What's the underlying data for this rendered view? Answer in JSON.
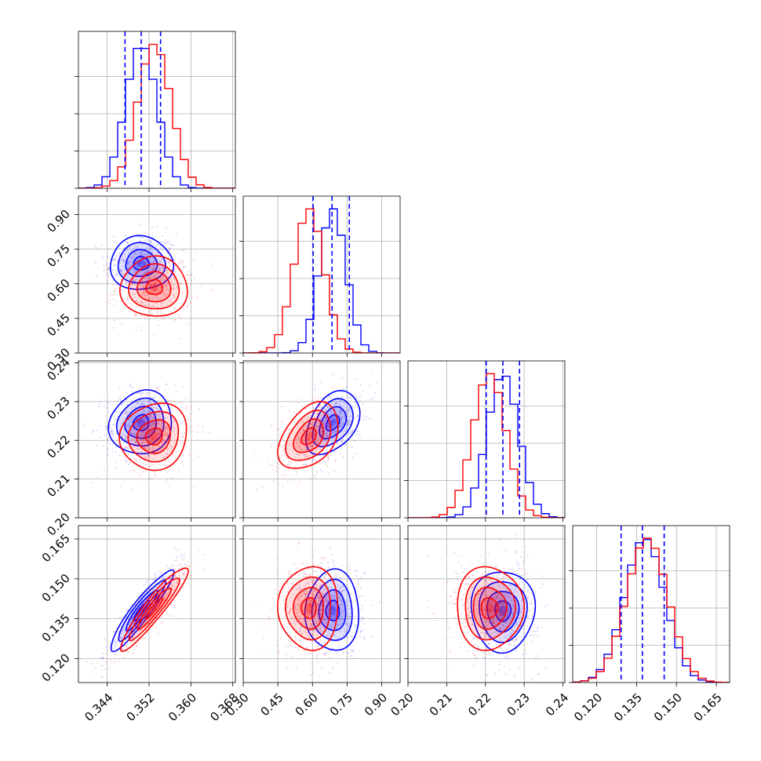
{
  "chart_data": {
    "type": "corner",
    "title": "",
    "grid": true,
    "colors": {
      "series_a": "#0000ff",
      "series_b": "#ff0000"
    },
    "series": [
      {
        "color": "#0000ff",
        "means": [
          0.3505,
          0.688,
          0.2245,
          0.138
        ],
        "stds": [
          0.003,
          0.058,
          0.0041,
          0.0076
        ]
      },
      {
        "color": "#ff0000",
        "means": [
          0.353,
          0.585,
          0.221,
          0.139
        ],
        "stds": [
          0.0032,
          0.065,
          0.0043,
          0.0078
        ]
      }
    ],
    "correlations": [
      [
        1.0,
        0.0,
        0.1,
        0.93
      ],
      [
        0.0,
        1.0,
        0.4,
        0.0
      ],
      [
        0.1,
        0.4,
        1.0,
        0.0
      ],
      [
        0.93,
        0.0,
        0.0,
        1.0
      ]
    ],
    "quantiles": [
      [
        0.3474,
        0.3505,
        0.3542
      ],
      [
        0.603,
        0.685,
        0.76
      ],
      [
        0.2202,
        0.2245,
        0.2288
      ],
      [
        0.1292,
        0.1372,
        0.1454
      ]
    ],
    "contour_levels_sigma": [
      0.5,
      1.0,
      1.5,
      2.0
    ],
    "parameters": [
      {
        "range": [
          0.3385,
          0.3685
        ],
        "ticks": [
          "0.344",
          "0.352",
          "0.360",
          "0.368"
        ]
      },
      {
        "range": [
          0.3,
          0.98
        ],
        "ticks": [
          "0.30",
          "0.45",
          "0.60",
          "0.75",
          "0.90"
        ]
      },
      {
        "range": [
          0.2,
          0.2405
        ],
        "ticks": [
          "0.20",
          "0.21",
          "0.22",
          "0.23",
          "0.24"
        ]
      },
      {
        "range": [
          0.111,
          0.17
        ],
        "ticks": [
          "0.120",
          "0.135",
          "0.150",
          "0.165"
        ]
      }
    ]
  }
}
